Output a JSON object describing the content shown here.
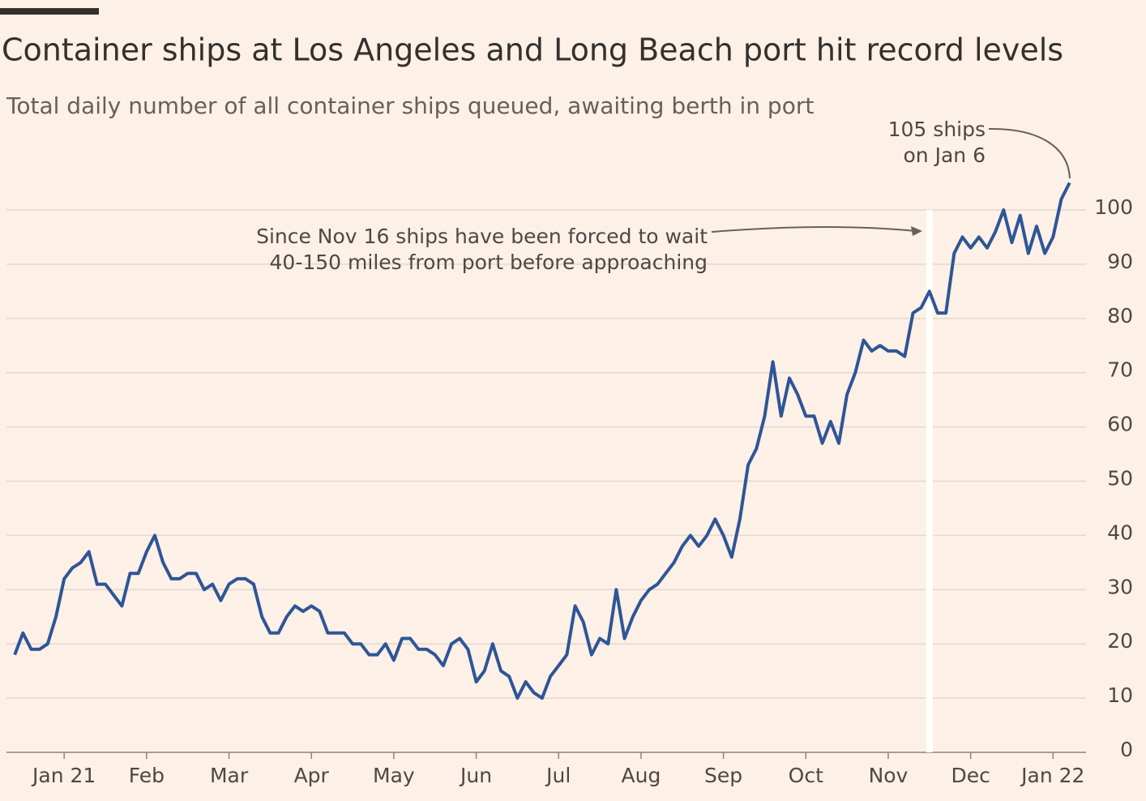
{
  "chart_data": {
    "type": "line",
    "title": "Container ships at Los Angeles and Long Beach port hit record levels",
    "subtitle": "Total daily number of all container ships queued, awaiting berth in port",
    "annotations": [
      {
        "lines": [
          "105 ships",
          "on Jan 6"
        ]
      },
      {
        "lines": [
          "Since Nov 16 ships have been forced to wait",
          "40-150 miles from port before approaching"
        ]
      }
    ],
    "highlight_x": 10.5,
    "x": [
      -0.6,
      -0.5,
      -0.4,
      -0.3,
      -0.2,
      -0.1,
      0,
      0.1,
      0.2,
      0.3,
      0.4,
      0.5,
      0.6,
      0.7,
      0.8,
      0.9,
      1,
      1.1,
      1.2,
      1.3,
      1.4,
      1.5,
      1.6,
      1.7,
      1.8,
      1.9,
      2,
      2.1,
      2.2,
      2.3,
      2.4,
      2.5,
      2.6,
      2.7,
      2.8,
      2.9,
      3,
      3.1,
      3.2,
      3.3,
      3.4,
      3.5,
      3.6,
      3.7,
      3.8,
      3.9,
      4,
      4.1,
      4.2,
      4.3,
      4.4,
      4.5,
      4.6,
      4.7,
      4.8,
      4.9,
      5,
      5.1,
      5.2,
      5.3,
      5.4,
      5.5,
      5.6,
      5.7,
      5.8,
      5.9,
      6,
      6.1,
      6.2,
      6.3,
      6.4,
      6.5,
      6.6,
      6.7,
      6.8,
      6.9,
      7,
      7.1,
      7.2,
      7.3,
      7.4,
      7.5,
      7.6,
      7.7,
      7.8,
      7.9,
      8,
      8.1,
      8.2,
      8.3,
      8.4,
      8.5,
      8.6,
      8.7,
      8.8,
      8.9,
      9,
      9.1,
      9.2,
      9.3,
      9.4,
      9.5,
      9.6,
      9.7,
      9.8,
      9.9,
      10,
      10.1,
      10.2,
      10.3,
      10.4,
      10.5,
      10.6,
      10.7,
      10.8,
      10.9,
      11,
      11.1,
      11.2,
      11.3,
      11.4,
      11.5,
      11.6,
      11.7,
      11.8,
      11.9,
      12,
      12.1,
      12.2
    ],
    "series": [
      {
        "color": "#2e5597",
        "values": [
          18,
          22,
          19,
          19,
          20,
          25,
          32,
          34,
          35,
          37,
          31,
          31,
          29,
          27,
          33,
          33,
          37,
          40,
          35,
          32,
          32,
          33,
          33,
          30,
          31,
          28,
          31,
          32,
          32,
          31,
          25,
          22,
          22,
          25,
          27,
          26,
          27,
          26,
          22,
          22,
          22,
          20,
          20,
          18,
          18,
          20,
          17,
          21,
          21,
          19,
          19,
          18,
          16,
          20,
          21,
          19,
          13,
          15,
          20,
          15,
          14,
          10,
          13,
          11,
          10,
          14,
          16,
          18,
          27,
          24,
          18,
          21,
          20,
          30,
          21,
          25,
          28,
          30,
          31,
          33,
          35,
          38,
          40,
          38,
          40,
          43,
          40,
          36,
          43,
          53,
          56,
          62,
          72,
          62,
          69,
          66,
          62,
          62,
          57,
          61,
          57,
          66,
          70,
          76,
          74,
          75,
          74,
          74,
          73,
          81,
          82,
          85,
          81,
          81,
          92,
          95,
          93,
          95,
          93,
          96,
          100,
          94,
          99,
          92,
          97,
          92,
          95,
          102,
          105
        ]
      }
    ],
    "xlim": [
      -0.7,
      12.4
    ],
    "xticks": [
      {
        "value": 0,
        "label": "Jan 21"
      },
      {
        "value": 1,
        "label": "Feb"
      },
      {
        "value": 2,
        "label": "Mar"
      },
      {
        "value": 3,
        "label": "Apr"
      },
      {
        "value": 4,
        "label": "May"
      },
      {
        "value": 5,
        "label": "Jun"
      },
      {
        "value": 6,
        "label": "Jul"
      },
      {
        "value": 7,
        "label": "Aug"
      },
      {
        "value": 8,
        "label": "Sep"
      },
      {
        "value": 9,
        "label": "Oct"
      },
      {
        "value": 10,
        "label": "Nov"
      },
      {
        "value": 11,
        "label": "Dec"
      },
      {
        "value": 12,
        "label": "Jan 22"
      }
    ],
    "ylim": [
      0,
      105
    ],
    "yticks": [
      0,
      10,
      20,
      30,
      40,
      50,
      60,
      70,
      80,
      90,
      100
    ],
    "grid": true
  }
}
